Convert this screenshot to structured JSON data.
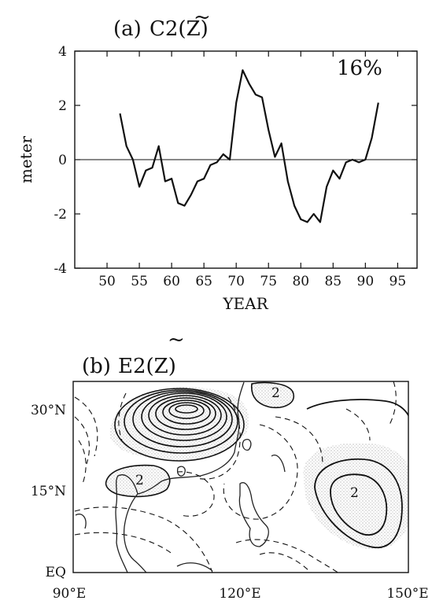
{
  "chart_data": [
    {
      "type": "line",
      "title_prefix": "(a)",
      "title_main": "C2(Z)",
      "title_accent": "~",
      "annotation": "16%",
      "xlabel": "YEAR",
      "ylabel": "meter",
      "xlim": [
        45,
        98
      ],
      "ylim": [
        -4,
        4
      ],
      "xticks": [
        "50",
        "55",
        "60",
        "65",
        "70",
        "75",
        "80",
        "85",
        "90",
        "95"
      ],
      "yticks": [
        "4",
        "2",
        "0",
        "-2",
        "-4"
      ],
      "zero_line": true,
      "series": [
        {
          "x": [
            52,
            53,
            54,
            55,
            56,
            57,
            58,
            59,
            60,
            61,
            62,
            63,
            64,
            65,
            66,
            67,
            68,
            69,
            70,
            71,
            72,
            73,
            74,
            75,
            76,
            77,
            78,
            79,
            80,
            81,
            82,
            83,
            84,
            85,
            86,
            87,
            88,
            89,
            90,
            91,
            92
          ],
          "y": [
            1.7,
            0.5,
            0.0,
            -1.0,
            -0.4,
            -0.3,
            0.5,
            -0.8,
            -0.7,
            -1.6,
            -1.7,
            -1.3,
            -0.8,
            -0.7,
            -0.2,
            -0.1,
            0.2,
            0.0,
            2.1,
            3.3,
            2.8,
            2.4,
            2.3,
            1.1,
            0.1,
            0.6,
            -0.8,
            -1.7,
            -2.2,
            -2.3,
            -2.0,
            -2.3,
            -1.0,
            -0.4,
            -0.7,
            -0.1,
            0.0,
            -0.1,
            0.0,
            0.8,
            2.1
          ]
        }
      ]
    },
    {
      "type": "contour-map",
      "title_prefix": "(b)",
      "title_main": "E2(Z)",
      "title_accent": "~",
      "xticks": [
        "90°E",
        "120°E",
        "150°E"
      ],
      "yticks": [
        "30°N",
        "15°N",
        "EQ"
      ],
      "contour_labels": [
        "2",
        "2",
        "2"
      ],
      "colors": {
        "line": "#111111",
        "shade": "#dddddd",
        "coast": "#222222"
      }
    }
  ]
}
